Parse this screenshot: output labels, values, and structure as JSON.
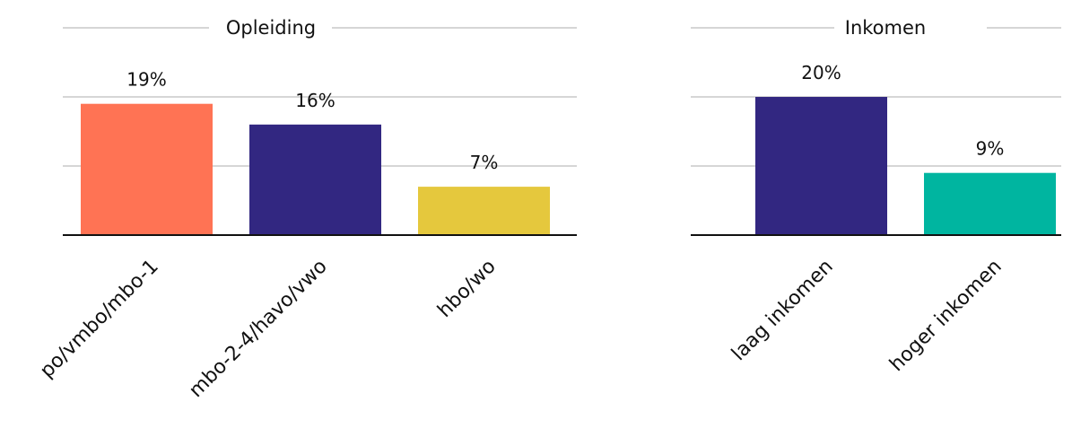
{
  "chart_data": [
    {
      "type": "bar",
      "title": "Opleiding",
      "categories": [
        "po/vmbo/mbo-1",
        "mbo-2-4/havo/vwo",
        "hbo/wo"
      ],
      "values": [
        19,
        16,
        7
      ],
      "value_labels": [
        "19%",
        "16%",
        "7%"
      ],
      "colors": [
        "#FF7354",
        "#322781",
        "#E5C83D"
      ],
      "ylim": [
        0,
        30
      ],
      "grid": true,
      "xlabel": "",
      "ylabel": ""
    },
    {
      "type": "bar",
      "title": "Inkomen",
      "categories": [
        "laag inkomen",
        "hoger inkomen"
      ],
      "values": [
        20,
        9
      ],
      "value_labels": [
        "20%",
        "9%"
      ],
      "colors": [
        "#322781",
        "#00B5A0"
      ],
      "ylim": [
        0,
        30
      ],
      "grid": true,
      "xlabel": "",
      "ylabel": ""
    }
  ]
}
